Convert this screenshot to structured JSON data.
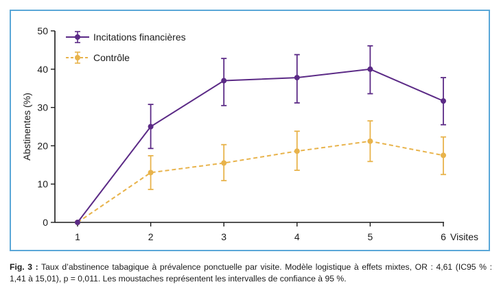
{
  "chart_data": {
    "type": "line",
    "x": [
      1,
      2,
      3,
      4,
      5,
      6
    ],
    "x_tick_labels": [
      "1",
      "2",
      "3",
      "4",
      "5",
      "6"
    ],
    "x_end_label": "Visites",
    "ylabel": "Abstinentes (%)",
    "ylim": [
      0,
      50
    ],
    "yticks": [
      0,
      10,
      20,
      30,
      40,
      50
    ],
    "legend_position": "top-left",
    "grid": false,
    "series": [
      {
        "name": "Incitations financières",
        "color": "#5b2a86",
        "line_style": "solid",
        "values": [
          0,
          25,
          37,
          37.8,
          40,
          31.7
        ],
        "error_low": [
          0,
          19.3,
          30.5,
          31.2,
          33.6,
          25.5
        ],
        "error_high": [
          0,
          30.8,
          42.8,
          43.8,
          46.1,
          37.8
        ]
      },
      {
        "name": "Contrôle",
        "color": "#e8b34b",
        "line_style": "dashed",
        "values": [
          0,
          13,
          15.5,
          18.6,
          21.2,
          17.5
        ],
        "error_low": [
          0,
          8.6,
          10.9,
          13.6,
          15.9,
          12.5
        ],
        "error_high": [
          0,
          17.4,
          20.3,
          23.8,
          26.5,
          22.3
        ]
      }
    ]
  },
  "caption": {
    "label": "Fig. 3 :",
    "text": " Taux d’abstinence tabagique à prévalence ponctuelle par visite. Modèle logistique à effets mixtes, OR : 4,61 (IC95 % : 1,41 à 15,01), p = 0,011. Les moustaches représentent les intervalles de confiance à 95 %."
  }
}
